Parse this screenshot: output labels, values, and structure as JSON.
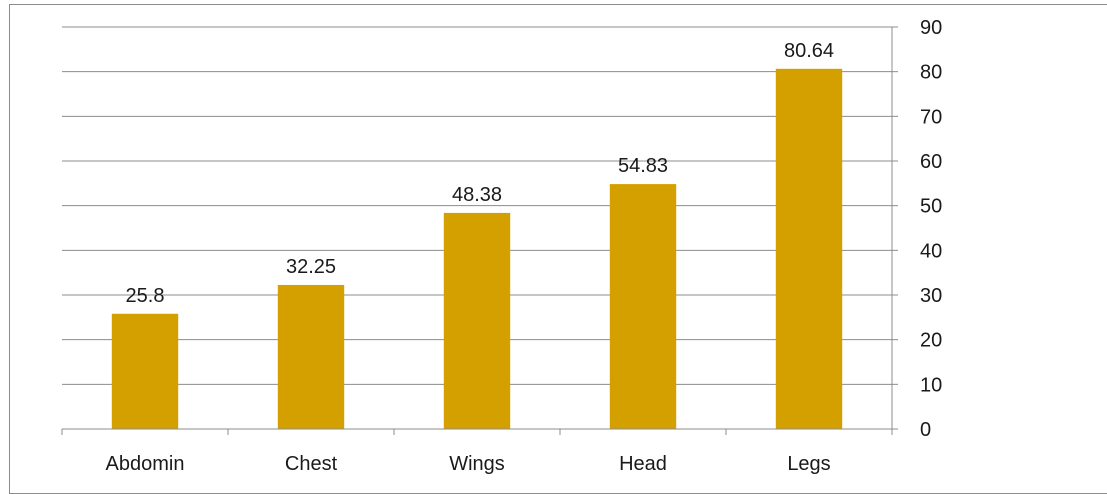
{
  "chart_data": {
    "type": "bar",
    "categories": [
      "Abdomin",
      "Chest",
      "Wings",
      "Head",
      "Legs"
    ],
    "values": [
      25.8,
      32.25,
      48.38,
      54.83,
      80.64
    ],
    "data_labels": [
      "25.8",
      "32.25",
      "48.38",
      "54.83",
      "80.64"
    ],
    "y_ticks": [
      "0",
      "10",
      "20",
      "30",
      "40",
      "50",
      "60",
      "70",
      "80",
      "90"
    ],
    "ylim": [
      0,
      90
    ],
    "y_axis_position": "right",
    "grid": true,
    "legend": "none",
    "bar_color": "#D4A000",
    "title": "",
    "xlabel": "",
    "ylabel": ""
  }
}
